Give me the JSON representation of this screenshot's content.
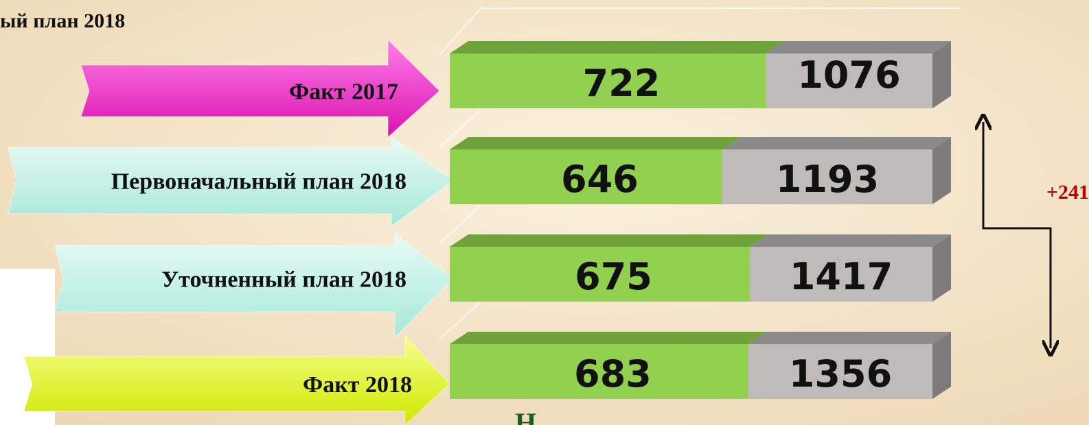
{
  "title": "ый план 2018",
  "rows": [
    {
      "label": "Факт 2017",
      "values": [
        722,
        1076
      ]
    },
    {
      "label": "Первоначальный план 2018",
      "values": [
        646,
        1193
      ]
    },
    {
      "label": "Уточненный план 2018",
      "values": [
        675,
        1417
      ]
    },
    {
      "label": "Факт 2018",
      "values": [
        683,
        1356
      ]
    }
  ],
  "annotation": "+241",
  "footer": "Н"
}
